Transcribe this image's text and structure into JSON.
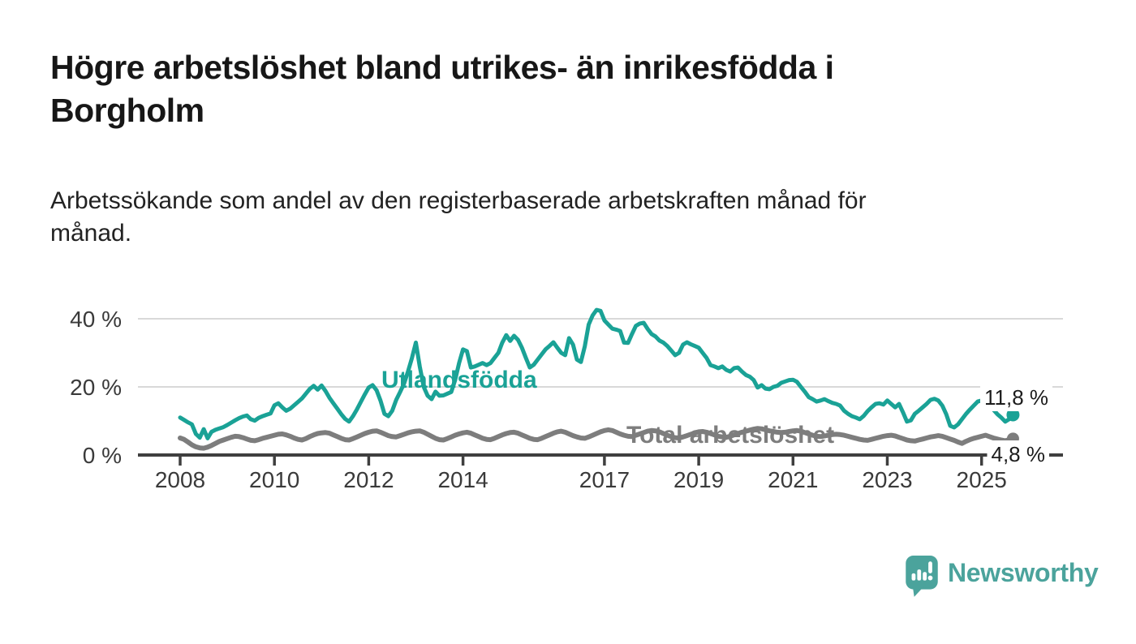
{
  "page": {
    "title_line1": "Högre arbetslöshet bland utrikes- än inrikesfödda i",
    "title_line2": "Borgholm",
    "subtitle_line1": "Arbetssökande som andel av den registerbaserade arbetskraften månad för",
    "subtitle_line2": "månad."
  },
  "branding": {
    "logo_text": "Newsworthy",
    "logo_icon": "newsworthy-speech-bubble-bar-chart-icon",
    "brand_color": "#4BA39C"
  },
  "chart_data": {
    "type": "line",
    "unit": "%",
    "x_start_year": 2008,
    "x_step_months": 1,
    "x_end_label_period": "2025-09",
    "x_tick_years": [
      "2008",
      "2010",
      "2012",
      "2014",
      "2017",
      "2019",
      "2021",
      "2023",
      "2025"
    ],
    "y_ticks": [
      {
        "value": 40,
        "label": "40 %"
      },
      {
        "value": 20,
        "label": "20 %"
      },
      {
        "value": 0,
        "label": "0 %"
      }
    ],
    "ylim": [
      0,
      45
    ],
    "grid": "horizontal",
    "legend_position": "inline-labels",
    "colors": {
      "grid": "#d9d9d9",
      "axis": "#3f3f3f",
      "tick_text": "#3a3a3a"
    },
    "series": [
      {
        "name": "Total arbetslöshet",
        "color": "#7d7d7d",
        "end_label": "4,8 %",
        "end_value": 4.8,
        "values": [
          5.0,
          4.6,
          3.8,
          3.0,
          2.4,
          2.1,
          2.0,
          2.3,
          2.8,
          3.4,
          4.0,
          4.4,
          4.8,
          5.2,
          5.5,
          5.4,
          5.1,
          4.7,
          4.3,
          4.2,
          4.5,
          4.9,
          5.2,
          5.5,
          5.8,
          6.1,
          6.2,
          5.9,
          5.5,
          5.0,
          4.6,
          4.4,
          4.8,
          5.4,
          5.9,
          6.3,
          6.5,
          6.6,
          6.4,
          5.9,
          5.4,
          4.9,
          4.5,
          4.4,
          4.8,
          5.3,
          5.8,
          6.3,
          6.7,
          7.0,
          7.1,
          6.7,
          6.2,
          5.7,
          5.4,
          5.3,
          5.7,
          6.1,
          6.5,
          6.8,
          7.0,
          7.1,
          6.7,
          6.1,
          5.5,
          4.9,
          4.5,
          4.4,
          4.8,
          5.3,
          5.8,
          6.2,
          6.5,
          6.7,
          6.4,
          5.9,
          5.4,
          4.9,
          4.6,
          4.5,
          4.9,
          5.4,
          5.9,
          6.3,
          6.6,
          6.7,
          6.4,
          5.9,
          5.4,
          4.9,
          4.6,
          4.5,
          4.9,
          5.4,
          5.9,
          6.4,
          6.8,
          7.0,
          6.7,
          6.2,
          5.7,
          5.3,
          5.0,
          4.9,
          5.3,
          5.8,
          6.3,
          6.8,
          7.2,
          7.4,
          7.2,
          6.7,
          6.2,
          5.8,
          5.5,
          5.4,
          5.8,
          6.2,
          6.6,
          7.0,
          7.2,
          7.1,
          6.8,
          6.3,
          5.8,
          5.4,
          5.1,
          5.0,
          5.3,
          5.7,
          6.1,
          6.5,
          6.8,
          6.9,
          6.7,
          6.3,
          5.9,
          5.5,
          5.3,
          5.2,
          5.5,
          5.9,
          6.3,
          6.7,
          7.0,
          7.3,
          7.6,
          7.8,
          7.7,
          7.4,
          7.1,
          6.9,
          6.7,
          6.6,
          6.7,
          6.9,
          7.1,
          7.2,
          7.0,
          6.6,
          6.2,
          5.8,
          5.5,
          5.4,
          5.6,
          5.8,
          6.0,
          6.1,
          6.0,
          5.8,
          5.5,
          5.2,
          4.9,
          4.6,
          4.4,
          4.3,
          4.6,
          4.9,
          5.2,
          5.5,
          5.7,
          5.8,
          5.6,
          5.2,
          4.8,
          4.4,
          4.2,
          4.1,
          4.4,
          4.7,
          5.0,
          5.3,
          5.5,
          5.7,
          5.5,
          5.1,
          4.7,
          4.3,
          3.8,
          3.4,
          4.0,
          4.5,
          4.9,
          5.2,
          5.5,
          5.8,
          5.4,
          5.0,
          4.7,
          4.4,
          4.2,
          4.5,
          4.8
        ]
      },
      {
        "name": "Utlandsfödda",
        "color": "#1aa296",
        "end_label": "11,8 %",
        "end_value": 11.8,
        "values": [
          11.0,
          10.3,
          9.6,
          9.0,
          6.2,
          5.1,
          7.6,
          4.9,
          6.8,
          7.4,
          7.8,
          8.2,
          8.8,
          9.5,
          10.2,
          10.8,
          11.3,
          11.6,
          10.5,
          10.1,
          10.9,
          11.4,
          11.8,
          12.2,
          14.6,
          15.2,
          14.0,
          13.0,
          13.6,
          14.6,
          15.6,
          16.6,
          18.0,
          19.4,
          20.3,
          19.2,
          20.4,
          18.8,
          16.8,
          15.2,
          13.6,
          12.0,
          10.6,
          9.8,
          11.4,
          13.4,
          15.6,
          17.8,
          19.8,
          20.5,
          19.0,
          16.0,
          12.1,
          11.4,
          13.0,
          16.2,
          18.5,
          21.0,
          24.5,
          28.5,
          33.0,
          26.0,
          20.0,
          17.4,
          16.4,
          18.6,
          17.4,
          17.5,
          18.0,
          18.5,
          22.0,
          27.0,
          31.0,
          30.5,
          25.7,
          26.0,
          26.5,
          27.0,
          26.4,
          27.0,
          28.5,
          30.0,
          33.0,
          35.2,
          33.5,
          35.0,
          33.8,
          31.5,
          28.5,
          25.7,
          26.5,
          28.0,
          29.5,
          31.0,
          32.0,
          33.1,
          31.5,
          30.0,
          29.3,
          34.3,
          32.4,
          28.0,
          27.3,
          31.9,
          38.3,
          41.0,
          42.6,
          42.3,
          39.5,
          38.3,
          37.1,
          36.8,
          36.4,
          33.0,
          32.9,
          35.5,
          37.9,
          38.6,
          38.8,
          37.0,
          35.5,
          34.8,
          33.6,
          33.0,
          32.0,
          30.7,
          29.3,
          30.0,
          32.4,
          33.1,
          32.5,
          32.0,
          31.5,
          30.0,
          28.5,
          26.4,
          26.0,
          25.5,
          26.0,
          25.0,
          24.5,
          25.5,
          25.7,
          24.5,
          23.5,
          23.0,
          22.0,
          19.8,
          20.5,
          19.5,
          19.3,
          20.0,
          20.3,
          21.2,
          21.6,
          22.0,
          22.1,
          21.5,
          20.0,
          18.6,
          17.0,
          16.4,
          15.7,
          16.0,
          16.4,
          15.8,
          15.3,
          15.0,
          14.5,
          13.0,
          12.1,
          11.4,
          11.0,
          10.5,
          11.5,
          12.9,
          14.0,
          15.0,
          15.2,
          14.8,
          16.0,
          15.0,
          14.0,
          15.0,
          12.5,
          9.8,
          10.2,
          12.1,
          13.0,
          14.0,
          15.0,
          16.2,
          16.5,
          16.0,
          14.5,
          12.0,
          8.6,
          8.1,
          9.0,
          10.5,
          12.0,
          13.3,
          14.5,
          15.7,
          16.0,
          14.5,
          15.2,
          13.3,
          12.0,
          11.0,
          9.8,
          10.5,
          11.8
        ]
      }
    ]
  }
}
